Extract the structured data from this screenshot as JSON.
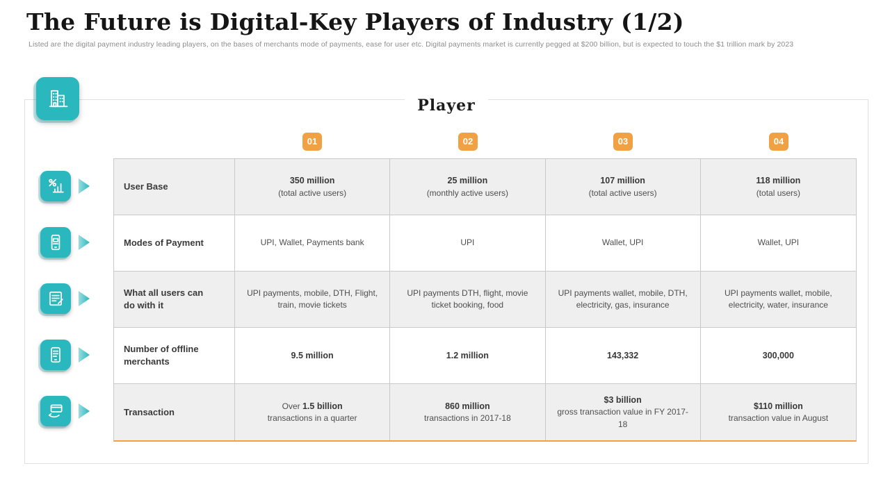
{
  "slide": {
    "title": "The Future is Digital-Key Players of Industry (1/2)",
    "subtitle": "Listed are the digital payment industry leading players, on the bases of merchants mode of payments, ease for user etc. Digital payments market is currently pegged at $200 billion, but is expected to touch the $1 trillion mark by 2023"
  },
  "colors": {
    "teal": "#2AB7BD",
    "orange": "#F0A143",
    "row_shade": "#EFEFEF"
  },
  "icons": {
    "header": "building-icon",
    "rows": [
      "growth-chart-icon",
      "mobile-payment-icon",
      "document-edit-icon",
      "merchant-device-icon",
      "card-payment-icon"
    ],
    "arrow": "chevron-right-arrow"
  },
  "table": {
    "heading": "Player",
    "columns": [
      "01",
      "02",
      "03",
      "04"
    ],
    "rows": [
      {
        "label": "User Base",
        "cells": [
          {
            "strong": "350 million",
            "sub": "(total active users)"
          },
          {
            "strong": "25 million",
            "sub": "(monthly active users)"
          },
          {
            "strong": "107 million",
            "sub": "(total active users)"
          },
          {
            "strong": "118 million",
            "sub": "(total users)"
          }
        ]
      },
      {
        "label": "Modes of Payment",
        "cells": [
          {
            "sub": "UPI, Wallet, Payments bank"
          },
          {
            "sub": "UPI"
          },
          {
            "sub": "Wallet, UPI"
          },
          {
            "sub": "Wallet, UPI"
          }
        ]
      },
      {
        "label": "What all users can do with it",
        "cells": [
          {
            "sub": "UPI payments, mobile, DTH, Flight, train, movie tickets"
          },
          {
            "sub": "UPI payments DTH, flight, movie ticket booking, food"
          },
          {
            "sub": "UPI payments wallet, mobile, DTH, electricity, gas, insurance"
          },
          {
            "sub": "UPI payments wallet, mobile, electricity, water, insurance"
          }
        ]
      },
      {
        "label": "Number of offline merchants",
        "cells": [
          {
            "strong": "9.5 million"
          },
          {
            "strong": "1.2 million"
          },
          {
            "strong": "143,332"
          },
          {
            "strong": "300,000"
          }
        ]
      },
      {
        "label": "Transaction",
        "cells": [
          {
            "pre": "Over ",
            "strong": "1.5 billion",
            "sub": "transactions in a quarter"
          },
          {
            "strong": "860 million",
            "sub": "transactions in 2017-18"
          },
          {
            "strong": "$3 billion",
            "sub": "gross transaction value in FY 2017- 18"
          },
          {
            "strong": "$110 million",
            "sub": "transaction value in August"
          }
        ]
      }
    ]
  }
}
